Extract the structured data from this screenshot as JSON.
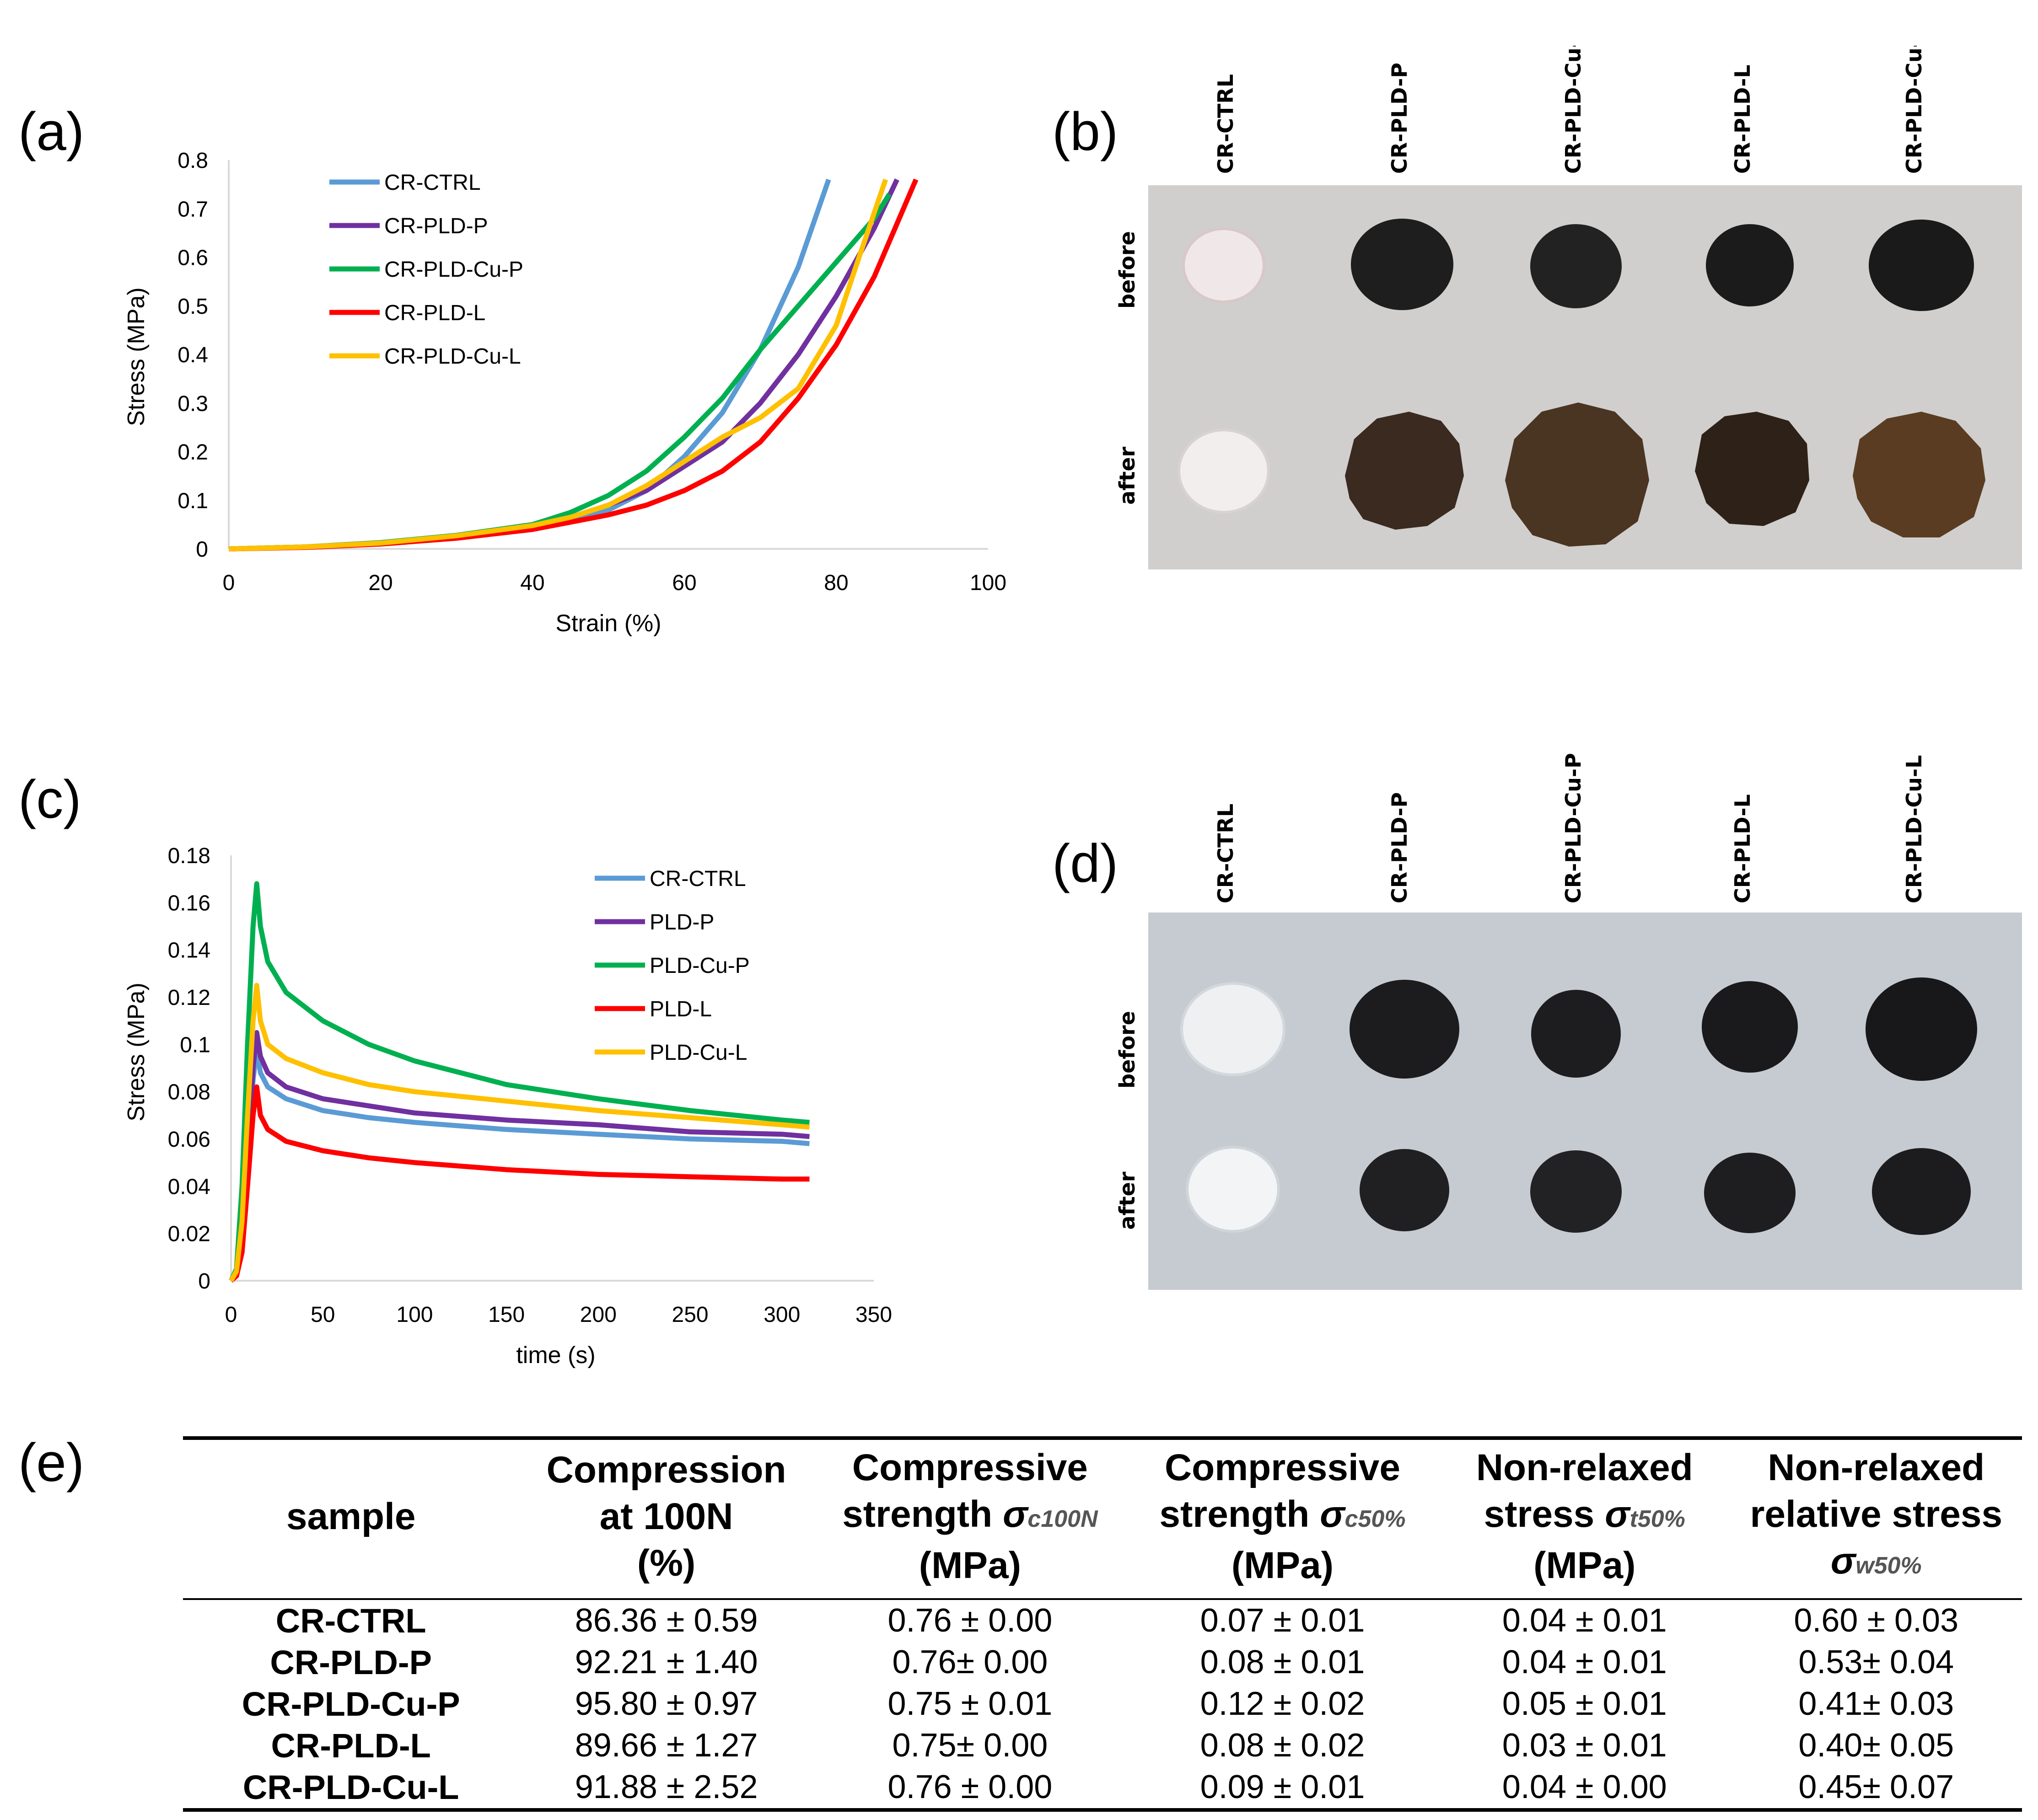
{
  "panels": {
    "a": "(a)",
    "b": "(b)",
    "c": "(c)",
    "d": "(d)",
    "e": "(e)"
  },
  "chart_data": [
    {
      "id": "a",
      "type": "line",
      "title": "",
      "xlabel": "Strain (%)",
      "ylabel": "Stress (MPa)",
      "xlim": [
        0,
        100
      ],
      "ylim": [
        0,
        0.8
      ],
      "x_ticks": [
        "0",
        "20",
        "40",
        "60",
        "80",
        "100"
      ],
      "y_ticks": [
        "0",
        "0.1",
        "0.2",
        "0.3",
        "0.4",
        "0.5",
        "0.6",
        "0.7",
        "0.8"
      ],
      "legend_position": "top-left",
      "series": [
        {
          "name": "CR-CTRL",
          "color": "#5b9bd5",
          "x": [
            0,
            10,
            20,
            30,
            40,
            45,
            50,
            55,
            60,
            65,
            70,
            75,
            79
          ],
          "y": [
            0,
            0.004,
            0.012,
            0.025,
            0.045,
            0.06,
            0.08,
            0.12,
            0.19,
            0.28,
            0.41,
            0.58,
            0.76
          ]
        },
        {
          "name": "CR-PLD-P",
          "color": "#7030a0",
          "x": [
            0,
            10,
            20,
            30,
            40,
            45,
            50,
            55,
            60,
            65,
            70,
            75,
            80,
            85,
            88
          ],
          "y": [
            0,
            0.004,
            0.012,
            0.026,
            0.048,
            0.065,
            0.09,
            0.12,
            0.17,
            0.22,
            0.3,
            0.4,
            0.52,
            0.66,
            0.76
          ]
        },
        {
          "name": "CR-PLD-Cu-P",
          "color": "#00b050",
          "x": [
            0,
            10,
            20,
            30,
            40,
            45,
            50,
            55,
            60,
            65,
            70,
            75,
            80,
            85,
            87
          ],
          "y": [
            0,
            0.004,
            0.013,
            0.028,
            0.05,
            0.075,
            0.11,
            0.16,
            0.23,
            0.31,
            0.41,
            0.5,
            0.59,
            0.68,
            0.73
          ]
        },
        {
          "name": "CR-PLD-L",
          "color": "#ff0000",
          "x": [
            0,
            10,
            20,
            30,
            40,
            45,
            50,
            55,
            60,
            65,
            70,
            75,
            80,
            85,
            90.5
          ],
          "y": [
            0,
            0.003,
            0.01,
            0.022,
            0.04,
            0.055,
            0.07,
            0.09,
            0.12,
            0.16,
            0.22,
            0.31,
            0.42,
            0.56,
            0.76
          ]
        },
        {
          "name": "CR-PLD-Cu-L",
          "color": "#ffc000",
          "x": [
            0,
            10,
            20,
            30,
            40,
            45,
            50,
            55,
            60,
            65,
            70,
            75,
            80,
            83,
            86.5
          ],
          "y": [
            0,
            0.004,
            0.012,
            0.027,
            0.048,
            0.065,
            0.09,
            0.13,
            0.18,
            0.23,
            0.27,
            0.33,
            0.46,
            0.6,
            0.76
          ]
        }
      ]
    },
    {
      "id": "c",
      "type": "line",
      "title": "",
      "xlabel": "time (s)",
      "ylabel": "Stress (MPa)",
      "xlim": [
        0,
        350
      ],
      "ylim": [
        0,
        0.18
      ],
      "x_ticks": [
        "0",
        "50",
        "100",
        "150",
        "200",
        "250",
        "300",
        "350"
      ],
      "y_ticks": [
        "0",
        "0.02",
        "0.04",
        "0.06",
        "0.08",
        "0.1",
        "0.12",
        "0.14",
        "0.16",
        "0.18"
      ],
      "legend_position": "top-right",
      "series": [
        {
          "name": "CR-CTRL",
          "color": "#5b9bd5",
          "x": [
            0,
            3,
            6,
            9,
            12,
            14,
            16,
            20,
            30,
            50,
            75,
            100,
            150,
            200,
            250,
            300,
            315
          ],
          "y": [
            0,
            0.003,
            0.018,
            0.05,
            0.085,
            0.098,
            0.088,
            0.082,
            0.077,
            0.072,
            0.069,
            0.067,
            0.064,
            0.062,
            0.06,
            0.059,
            0.058
          ]
        },
        {
          "name": "PLD-P",
          "color": "#7030a0",
          "x": [
            0,
            3,
            6,
            9,
            12,
            14,
            16,
            20,
            30,
            50,
            75,
            100,
            150,
            200,
            250,
            300,
            315
          ],
          "y": [
            0,
            0.003,
            0.02,
            0.055,
            0.09,
            0.105,
            0.095,
            0.088,
            0.082,
            0.077,
            0.074,
            0.071,
            0.068,
            0.066,
            0.063,
            0.062,
            0.061
          ]
        },
        {
          "name": "PLD-Cu-P",
          "color": "#00b050",
          "x": [
            0,
            3,
            6,
            9,
            12,
            14,
            16,
            20,
            30,
            50,
            75,
            100,
            150,
            200,
            250,
            300,
            315
          ],
          "y": [
            0,
            0.005,
            0.04,
            0.1,
            0.15,
            0.168,
            0.15,
            0.135,
            0.122,
            0.11,
            0.1,
            0.093,
            0.083,
            0.077,
            0.072,
            0.068,
            0.067
          ]
        },
        {
          "name": "PLD-L",
          "color": "#ff0000",
          "x": [
            0,
            3,
            6,
            9,
            12,
            14,
            16,
            20,
            30,
            50,
            75,
            100,
            150,
            200,
            250,
            300,
            315
          ],
          "y": [
            0,
            0.002,
            0.012,
            0.04,
            0.07,
            0.082,
            0.07,
            0.064,
            0.059,
            0.055,
            0.052,
            0.05,
            0.047,
            0.045,
            0.044,
            0.043,
            0.043
          ]
        },
        {
          "name": "PLD-Cu-L",
          "color": "#ffc000",
          "x": [
            0,
            3,
            6,
            9,
            12,
            14,
            16,
            20,
            30,
            50,
            75,
            100,
            150,
            200,
            250,
            300,
            315
          ],
          "y": [
            0,
            0.004,
            0.025,
            0.07,
            0.11,
            0.125,
            0.11,
            0.1,
            0.094,
            0.088,
            0.083,
            0.08,
            0.076,
            0.072,
            0.069,
            0.066,
            0.065
          ]
        }
      ]
    }
  ],
  "photo_b": {
    "columns": [
      "CR-CTRL",
      "CR-PLD-P",
      "CR-PLD-Cu-P",
      "CR-PLD-L",
      "CR-PLD-Cu-L"
    ],
    "rows": [
      "before",
      "after"
    ]
  },
  "photo_d": {
    "columns": [
      "CR-CTRL",
      "CR-PLD-P",
      "CR-PLD-Cu-P",
      "CR-PLD-L",
      "CR-PLD-Cu-L"
    ],
    "rows": [
      "before",
      "after"
    ]
  },
  "table_e": {
    "headers": {
      "sample": "sample",
      "col1": [
        "Compression",
        "at 100N",
        "(%)"
      ],
      "col2": [
        "Compressive",
        "strength",
        "(MPa)"
      ],
      "col2_symbol": "σ",
      "col2_sub": "c100N",
      "col3": [
        "Compressive",
        "strength",
        "(MPa)"
      ],
      "col3_symbol": "σ",
      "col3_sub": "c50%",
      "col4": [
        "Non-relaxed",
        "stress",
        "(MPa)"
      ],
      "col4_symbol": "σ",
      "col4_sub": "t50%",
      "col5": [
        "Non-relaxed",
        "relative stress"
      ],
      "col5_symbol": "σ",
      "col5_sub": "w50%"
    },
    "rows": [
      {
        "sample": "CR-CTRL",
        "c1": "86.36 ± 0.59",
        "c2": "0.76 ± 0.00",
        "c3": "0.07  ± 0.01",
        "c4": "0.04 ± 0.01",
        "c5": "0.60 ± 0.03"
      },
      {
        "sample": "CR-PLD-P",
        "c1": "92.21 ± 1.40",
        "c2": "0.76± 0.00",
        "c3": "0.08  ± 0.01",
        "c4": "0.04 ± 0.01",
        "c5": "0.53± 0.04"
      },
      {
        "sample": "CR-PLD-Cu-P",
        "c1": "95.80 ± 0.97",
        "c2": "0.75 ± 0.01",
        "c3": "0.12  ± 0.02",
        "c4": "0.05 ± 0.01",
        "c5": "0.41± 0.03"
      },
      {
        "sample": "CR-PLD-L",
        "c1": "89.66  ± 1.27",
        "c2": "0.75± 0.00",
        "c3": "0.08  ± 0.02",
        "c4": "0.03 ± 0.01",
        "c5": "0.40± 0.05"
      },
      {
        "sample": "CR-PLD-Cu-L",
        "c1": "91.88 ± 2.52",
        "c2": "0.76 ± 0.00",
        "c3": "0.09  ± 0.01",
        "c4": "0.04 ± 0.00",
        "c5": "0.45± 0.07"
      }
    ]
  }
}
